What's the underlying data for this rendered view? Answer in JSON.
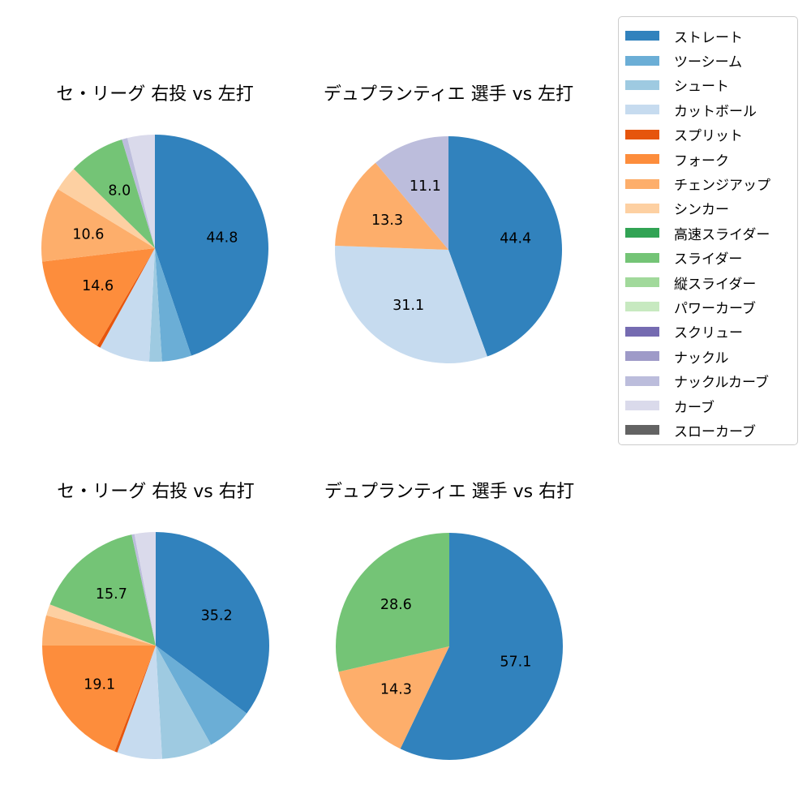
{
  "page": {
    "background": "#ffffff",
    "text_color": "#000000"
  },
  "legend": {
    "border_color": "#cccccc",
    "items": [
      {
        "label": "ストレート",
        "color": "#3182bd"
      },
      {
        "label": "ツーシーム",
        "color": "#6baed6"
      },
      {
        "label": "シュート",
        "color": "#9ecae1"
      },
      {
        "label": "カットボール",
        "color": "#c6dbef"
      },
      {
        "label": "スプリット",
        "color": "#e6550d"
      },
      {
        "label": "フォーク",
        "color": "#fd8d3c"
      },
      {
        "label": "チェンジアップ",
        "color": "#fdae6b"
      },
      {
        "label": "シンカー",
        "color": "#fdd0a2"
      },
      {
        "label": "高速スライダー",
        "color": "#31a354"
      },
      {
        "label": "スライダー",
        "color": "#74c476"
      },
      {
        "label": "縦スライダー",
        "color": "#a1d99b"
      },
      {
        "label": "パワーカーブ",
        "color": "#c7e9c0"
      },
      {
        "label": "スクリュー",
        "color": "#756bb1"
      },
      {
        "label": "ナックル",
        "color": "#9e9ac8"
      },
      {
        "label": "ナックルカーブ",
        "color": "#bcbddc"
      },
      {
        "label": "カーブ",
        "color": "#dadaeb"
      },
      {
        "label": "スローカーブ",
        "color": "#636363"
      }
    ]
  },
  "chart_data": [
    {
      "type": "pie",
      "title": "セ・リーグ 右投 vs 左打",
      "start_angle": "top",
      "direction": "clockwise",
      "value_label_min": 8,
      "value_label_decimals": 1,
      "slices": [
        {
          "label": "ストレート",
          "value": 44.8
        },
        {
          "label": "ツーシーム",
          "value": 4.2
        },
        {
          "label": "シュート",
          "value": 1.8
        },
        {
          "label": "カットボール",
          "value": 7.2
        },
        {
          "label": "スプリット",
          "value": 0.5
        },
        {
          "label": "フォーク",
          "value": 14.6
        },
        {
          "label": "チェンジアップ",
          "value": 10.6
        },
        {
          "label": "シンカー",
          "value": 3.6
        },
        {
          "label": "スライダー",
          "value": 8.0
        },
        {
          "label": "ナックルカーブ",
          "value": 0.8
        },
        {
          "label": "カーブ",
          "value": 3.9
        }
      ]
    },
    {
      "type": "pie",
      "title": "デュプランティエ 選手 vs 左打",
      "start_angle": "top",
      "direction": "clockwise",
      "value_label_min": 8,
      "value_label_decimals": 1,
      "slices": [
        {
          "label": "ストレート",
          "value": 44.4
        },
        {
          "label": "カットボール",
          "value": 31.1
        },
        {
          "label": "チェンジアップ",
          "value": 13.3
        },
        {
          "label": "ナックルカーブ",
          "value": 11.1
        }
      ]
    },
    {
      "type": "pie",
      "title": "セ・リーグ 右投 vs 右打",
      "start_angle": "top",
      "direction": "clockwise",
      "value_label_min": 8,
      "value_label_decimals": 1,
      "slices": [
        {
          "label": "ストレート",
          "value": 35.2
        },
        {
          "label": "ツーシーム",
          "value": 6.7
        },
        {
          "label": "シュート",
          "value": 7.2
        },
        {
          "label": "カットボール",
          "value": 6.4
        },
        {
          "label": "スプリット",
          "value": 0.4
        },
        {
          "label": "フォーク",
          "value": 19.1
        },
        {
          "label": "チェンジアップ",
          "value": 4.3
        },
        {
          "label": "シンカー",
          "value": 1.6
        },
        {
          "label": "スライダー",
          "value": 15.7
        },
        {
          "label": "ナックルカーブ",
          "value": 0.4
        },
        {
          "label": "カーブ",
          "value": 3.0
        }
      ]
    },
    {
      "type": "pie",
      "title": "デュプランティエ 選手 vs 右打",
      "start_angle": "top",
      "direction": "clockwise",
      "value_label_min": 8,
      "value_label_decimals": 1,
      "slices": [
        {
          "label": "ストレート",
          "value": 57.1
        },
        {
          "label": "チェンジアップ",
          "value": 14.3
        },
        {
          "label": "スライダー",
          "value": 28.6
        }
      ]
    }
  ]
}
